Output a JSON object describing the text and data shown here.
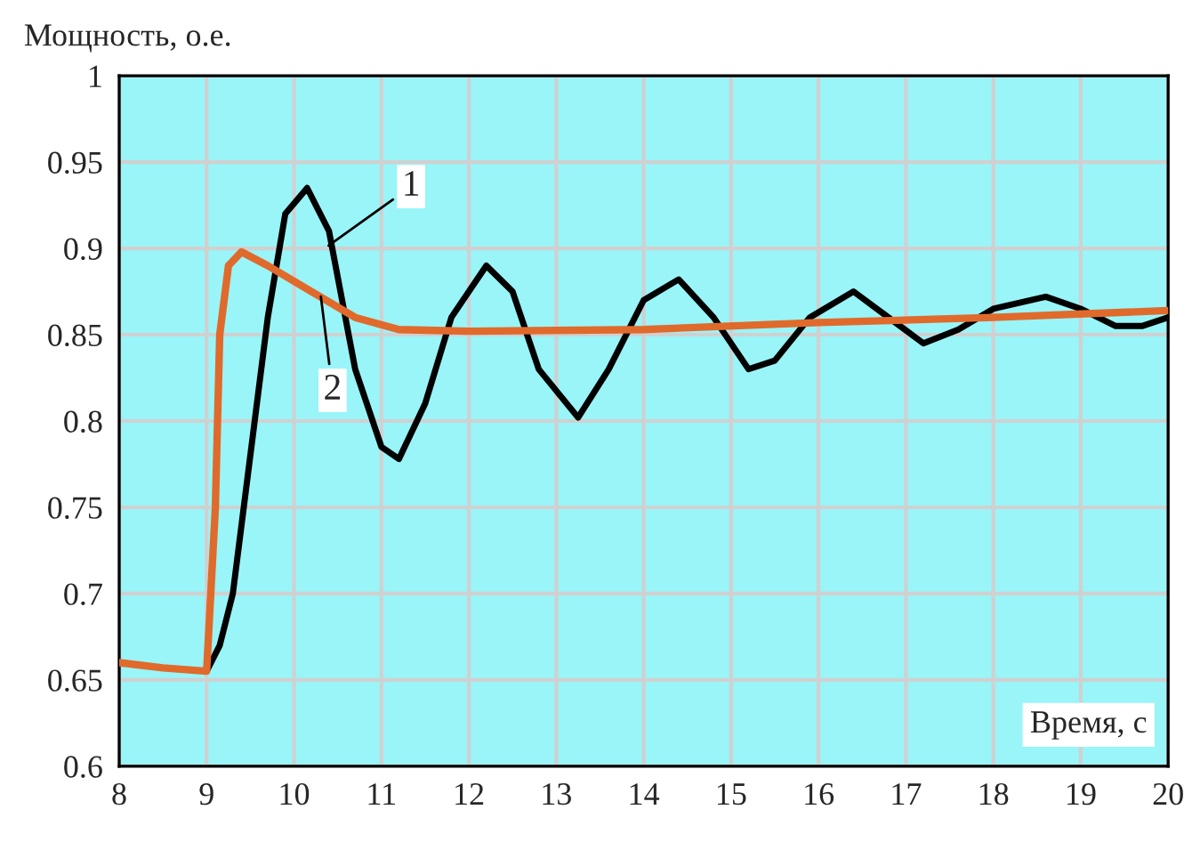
{
  "chart_data": {
    "type": "line",
    "xlabel": "Время, с",
    "ylabel": "Мощность, о.е.",
    "xlim": [
      8,
      20
    ],
    "xticks": [
      8,
      9,
      10,
      11,
      12,
      13,
      14,
      15,
      16,
      17,
      18,
      19,
      20
    ],
    "ylim": [
      0.6,
      1
    ],
    "yticks": [
      0.6,
      0.65,
      0.7,
      0.75,
      0.8,
      0.85,
      0.9,
      0.95,
      1
    ],
    "grid": true,
    "legend": false,
    "series": [
      {
        "color": "#000000",
        "x": [
          9.0,
          9.15,
          9.3,
          9.5,
          9.7,
          9.9,
          10.15,
          10.4,
          10.7,
          11.0,
          11.2,
          11.5,
          11.8,
          12.2,
          12.5,
          12.8,
          13.25,
          13.6,
          14.0,
          14.4,
          14.8,
          15.2,
          15.5,
          15.9,
          16.4,
          16.8,
          17.2,
          17.6,
          18.0,
          18.6,
          19.0,
          19.4,
          19.7,
          20.0
        ],
        "values": [
          0.655,
          0.67,
          0.7,
          0.78,
          0.86,
          0.92,
          0.935,
          0.91,
          0.83,
          0.785,
          0.778,
          0.81,
          0.86,
          0.89,
          0.875,
          0.83,
          0.802,
          0.83,
          0.87,
          0.882,
          0.86,
          0.83,
          0.835,
          0.86,
          0.875,
          0.86,
          0.845,
          0.853,
          0.865,
          0.872,
          0.865,
          0.855,
          0.855,
          0.86
        ]
      },
      {
        "color": "#e06a2c",
        "x": [
          8.0,
          8.5,
          9.0,
          9.1,
          9.15,
          9.25,
          9.4,
          9.7,
          10.2,
          10.7,
          11.2,
          12.0,
          14.0,
          16.0,
          18.0,
          20.0
        ],
        "values": [
          0.66,
          0.657,
          0.655,
          0.75,
          0.85,
          0.89,
          0.898,
          0.89,
          0.875,
          0.86,
          0.853,
          0.852,
          0.853,
          0.857,
          0.86,
          0.864
        ]
      }
    ],
    "annotations": [
      {
        "text": "1",
        "x": 10.35,
        "y": 0.9
      },
      {
        "text": "2",
        "x": 10.3,
        "y": 0.875
      }
    ]
  }
}
